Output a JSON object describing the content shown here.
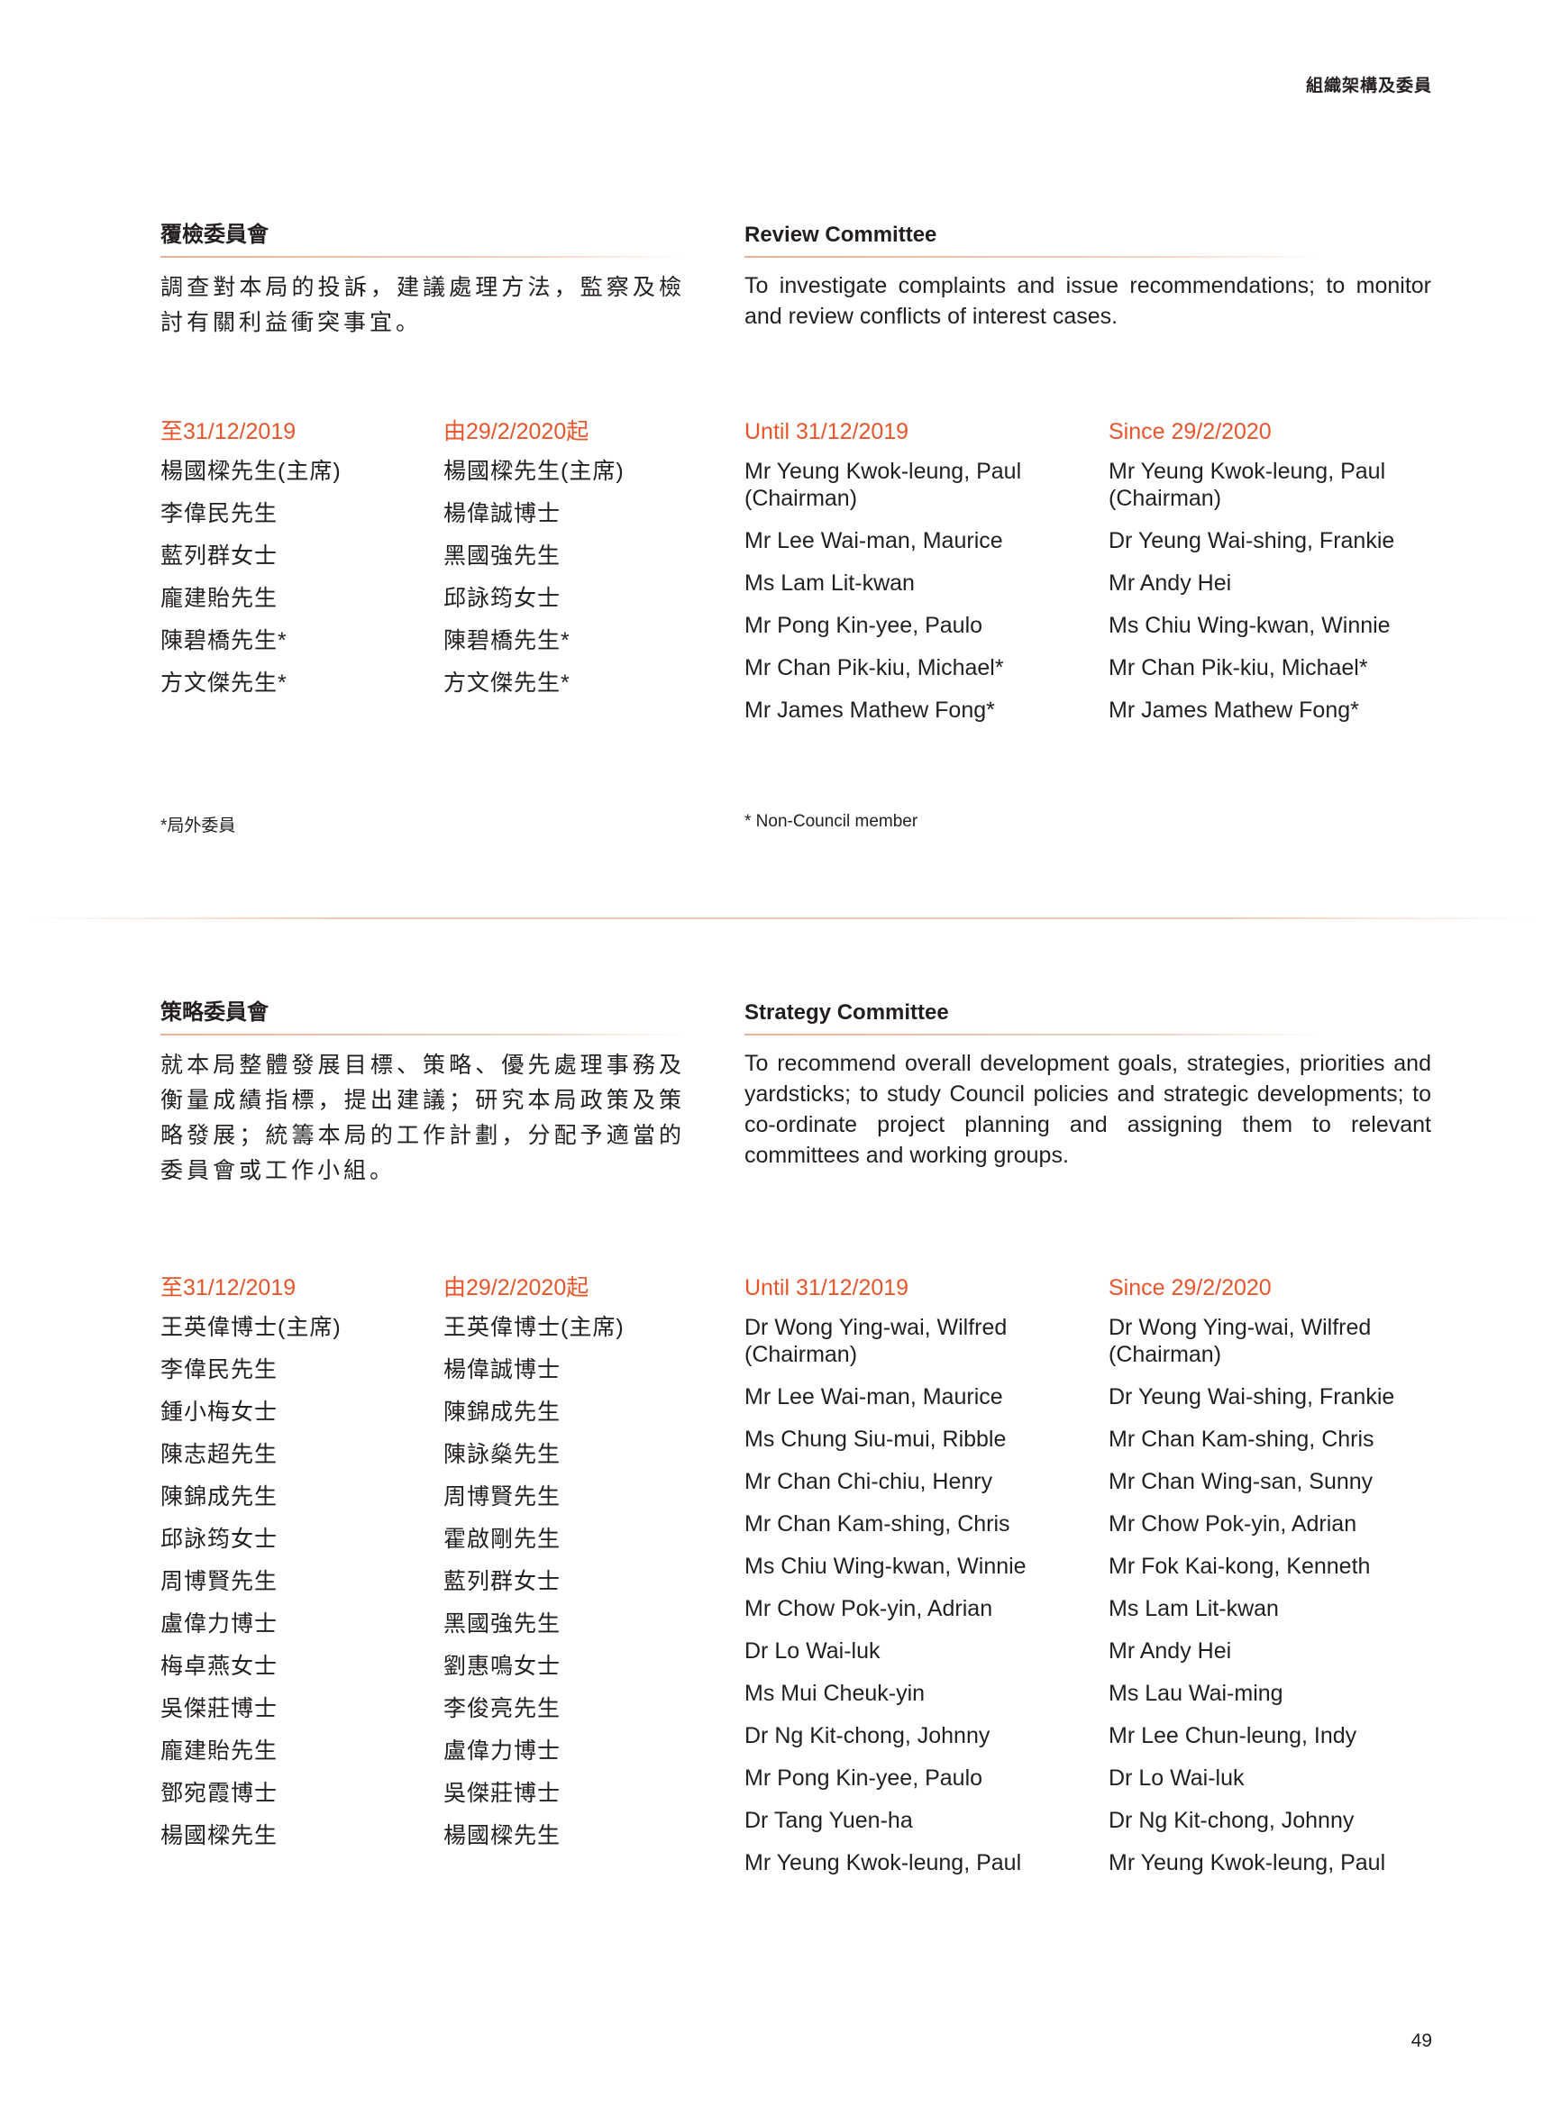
{
  "header": {
    "title": "組織架構及委員"
  },
  "review": {
    "zh_title": "覆檢委員會",
    "zh_desc": "調查對本局的投訴，建議處理方法，監察及檢討有關利益衝突事宜。",
    "en_title": "Review Committee",
    "en_desc": "To investigate complaints and issue recommendations; to monitor and review conflicts of interest cases.",
    "zh_until": "至31/12/2019",
    "zh_since": "由29/2/2020起",
    "en_until": "Until 31/12/2019",
    "en_since": "Since 29/2/2020",
    "zh_until_members": [
      "楊國樑先生(主席)",
      "李偉民先生",
      "藍列群女士",
      "龐建貽先生",
      "陳碧橋先生*",
      "方文傑先生*"
    ],
    "zh_since_members": [
      "楊國樑先生(主席)",
      "楊偉誠博士",
      "黑國強先生",
      "邱詠筠女士",
      "陳碧橋先生*",
      "方文傑先生*"
    ],
    "en_until_members": [
      "Mr Yeung Kwok-leung, Paul (Chairman)",
      "Mr Lee Wai-man, Maurice",
      "Ms Lam Lit-kwan",
      "Mr Pong Kin-yee, Paulo",
      "Mr Chan Pik-kiu, Michael*",
      "Mr James Mathew Fong*"
    ],
    "en_since_members": [
      "Mr Yeung Kwok-leung, Paul (Chairman)",
      "Dr Yeung Wai-shing, Frankie",
      "Mr Andy Hei",
      "Ms Chiu Wing-kwan, Winnie",
      "Mr Chan Pik-kiu, Michael*",
      "Mr James Mathew Fong*"
    ],
    "zh_footnote": "*局外委員",
    "en_footnote": "* Non-Council member"
  },
  "strategy": {
    "zh_title": "策略委員會",
    "zh_desc": "就本局整體發展目標、策略、優先處理事務及衡量成績指標，提出建議；研究本局政策及策略發展；統籌本局的工作計劃，分配予適當的委員會或工作小組。",
    "en_title": "Strategy Committee",
    "en_desc": "To recommend overall development goals, strategies, priorities and yardsticks; to study Council policies and strategic developments; to co-ordinate project planning and assigning them to relevant committees and working groups.",
    "zh_until": "至31/12/2019",
    "zh_since": "由29/2/2020起",
    "en_until": "Until 31/12/2019",
    "en_since": "Since 29/2/2020",
    "zh_until_members": [
      "王英偉博士(主席)",
      "李偉民先生",
      "鍾小梅女士",
      "陳志超先生",
      "陳錦成先生",
      "邱詠筠女士",
      "周博賢先生",
      "盧偉力博士",
      "梅卓燕女士",
      "吳傑莊博士",
      "龐建貽先生",
      "鄧宛霞博士",
      "楊國樑先生"
    ],
    "zh_since_members": [
      "王英偉博士(主席)",
      "楊偉誠博士",
      "陳錦成先生",
      "陳詠燊先生",
      "周博賢先生",
      "霍啟剛先生",
      "藍列群女士",
      "黑國強先生",
      "劉惠鳴女士",
      "李俊亮先生",
      "盧偉力博士",
      "吳傑莊博士",
      "楊國樑先生"
    ],
    "en_until_members": [
      "Dr Wong Ying-wai, Wilfred (Chairman)",
      "Mr Lee Wai-man, Maurice",
      "Ms Chung Siu-mui, Ribble",
      "Mr Chan Chi-chiu, Henry",
      "Mr Chan Kam-shing, Chris",
      "Ms Chiu Wing-kwan, Winnie",
      "Mr Chow Pok-yin, Adrian",
      "Dr Lo Wai-luk",
      "Ms Mui Cheuk-yin",
      "Dr Ng Kit-chong, Johnny",
      "Mr Pong Kin-yee, Paulo",
      "Dr Tang Yuen-ha",
      "Mr Yeung Kwok-leung, Paul"
    ],
    "en_since_members": [
      "Dr Wong Ying-wai, Wilfred (Chairman)",
      "Dr Yeung Wai-shing, Frankie",
      "Mr Chan Kam-shing, Chris",
      "Mr Chan Wing-san, Sunny",
      "Mr Chow Pok-yin, Adrian",
      "Mr Fok Kai-kong, Kenneth",
      "Ms Lam Lit-kwan",
      "Mr Andy Hei",
      "Ms Lau Wai-ming",
      "Mr Lee Chun-leung, Indy",
      "Dr Lo Wai-luk",
      "Dr Ng Kit-chong, Johnny",
      "Mr Yeung Kwok-leung, Paul"
    ]
  },
  "page_number": "49"
}
